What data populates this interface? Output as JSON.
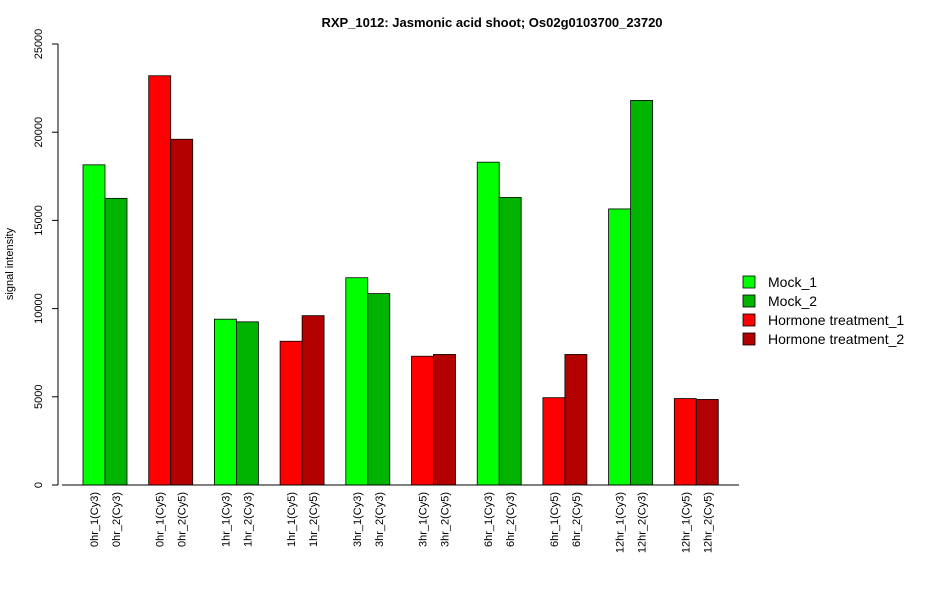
{
  "chart_data": {
    "type": "bar",
    "title": "RXP_1012: Jasmonic acid shoot; Os02g0103700_23720",
    "xlabel": "",
    "ylabel": "signal intensity",
    "ylim": [
      0,
      25000
    ],
    "yticks": [
      0,
      5000,
      10000,
      15000,
      20000,
      25000
    ],
    "legend": {
      "placement": "right",
      "entries": [
        {
          "name": "Mock_1",
          "color": "#00ff00"
        },
        {
          "name": "Mock_2",
          "color": "#00b300"
        },
        {
          "name": "Hormone treatment_1",
          "color": "#ff0000"
        },
        {
          "name": "Hormone treatment_2",
          "color": "#b30000"
        }
      ]
    },
    "groups": [
      {
        "bars": [
          {
            "label": "0hr_1(Cy3)",
            "value": 18150,
            "color": "#00ff00"
          },
          {
            "label": "0hr_2(Cy3)",
            "value": 16250,
            "color": "#00b300"
          }
        ]
      },
      {
        "bars": [
          {
            "label": "0hr_1(Cy5)",
            "value": 23200,
            "color": "#ff0000"
          },
          {
            "label": "0hr_2(Cy5)",
            "value": 19600,
            "color": "#b30000"
          }
        ]
      },
      {
        "bars": [
          {
            "label": "1hr_1(Cy3)",
            "value": 9400,
            "color": "#00ff00"
          },
          {
            "label": "1hr_2(Cy3)",
            "value": 9250,
            "color": "#00b300"
          }
        ]
      },
      {
        "bars": [
          {
            "label": "1hr_1(Cy5)",
            "value": 8150,
            "color": "#ff0000"
          },
          {
            "label": "1hr_2(Cy5)",
            "value": 9600,
            "color": "#b30000"
          }
        ]
      },
      {
        "bars": [
          {
            "label": "3hr_1(Cy3)",
            "value": 11750,
            "color": "#00ff00"
          },
          {
            "label": "3hr_2(Cy3)",
            "value": 10850,
            "color": "#00b300"
          }
        ]
      },
      {
        "bars": [
          {
            "label": "3hr_1(Cy5)",
            "value": 7300,
            "color": "#ff0000"
          },
          {
            "label": "3hr_2(Cy5)",
            "value": 7400,
            "color": "#b30000"
          }
        ]
      },
      {
        "bars": [
          {
            "label": "6hr_1(Cy3)",
            "value": 18300,
            "color": "#00ff00"
          },
          {
            "label": "6hr_2(Cy3)",
            "value": 16300,
            "color": "#00b300"
          }
        ]
      },
      {
        "bars": [
          {
            "label": "6hr_1(Cy5)",
            "value": 4950,
            "color": "#ff0000"
          },
          {
            "label": "6hr_2(Cy5)",
            "value": 7400,
            "color": "#b30000"
          }
        ]
      },
      {
        "bars": [
          {
            "label": "12hr_1(Cy3)",
            "value": 15650,
            "color": "#00ff00"
          },
          {
            "label": "12hr_2(Cy3)",
            "value": 21800,
            "color": "#00b300"
          }
        ]
      },
      {
        "bars": [
          {
            "label": "12hr_1(Cy5)",
            "value": 4900,
            "color": "#ff0000"
          },
          {
            "label": "12hr_2(Cy5)",
            "value": 4850,
            "color": "#b30000"
          }
        ]
      }
    ]
  }
}
